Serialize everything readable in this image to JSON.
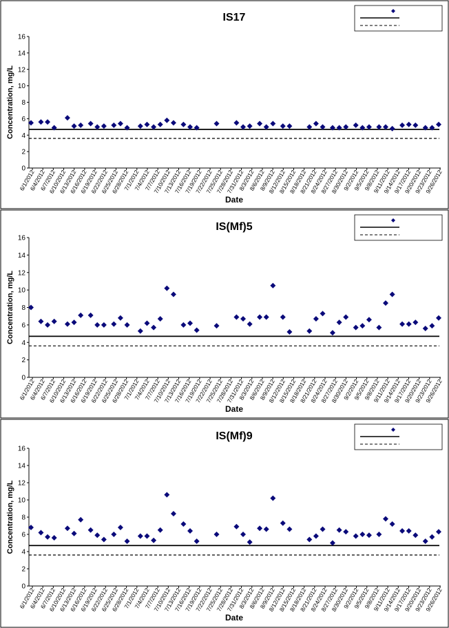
{
  "colors": {
    "marker": "#0a0a7a",
    "line": "#000000",
    "frame": "#000000"
  },
  "chart_data": [
    {
      "type": "scatter",
      "title": "IS17",
      "xlabel": "Date",
      "ylabel": "Concentration, mg/L",
      "ylim": [
        0,
        16
      ],
      "yticks": [
        0,
        2,
        4,
        6,
        8,
        10,
        12,
        14,
        16
      ],
      "grid": false,
      "legend_position": "top-right",
      "legend_labels": [
        "",
        "",
        ""
      ],
      "reference_lines": [
        {
          "y": 4.7,
          "style": "solid"
        },
        {
          "y": 3.6,
          "style": "dashed"
        }
      ],
      "x_tick_labels": [
        "6/1/2012",
        "6/4/2012",
        "6/7/2012",
        "6/10/2012",
        "6/13/2012",
        "6/16/2012",
        "6/19/2012",
        "6/22/2012",
        "6/25/2012",
        "6/28/2012",
        "7/1/2012",
        "7/4/2012",
        "7/7/2012",
        "7/10/2012",
        "7/13/2012",
        "7/16/2012",
        "7/19/2012",
        "7/22/2012",
        "7/25/2012",
        "7/28/2012",
        "7/31/2012",
        "8/3/2012",
        "8/6/2012",
        "8/9/2012",
        "8/12/2012",
        "8/15/2012",
        "8/18/2012",
        "8/21/2012",
        "8/24/2012",
        "8/27/2012",
        "8/30/2012",
        "9/2/2012",
        "9/5/2012",
        "9/8/2012",
        "9/11/2012",
        "9/14/2012",
        "9/17/2012",
        "9/20/2012",
        "9/23/2012",
        "9/26/2012"
      ],
      "points": [
        {
          "x": "6/1/2012",
          "y": 5.5
        },
        {
          "x": "6/4/2012",
          "y": 5.6
        },
        {
          "x": "6/6/2012",
          "y": 5.6
        },
        {
          "x": "6/8/2012",
          "y": 4.9
        },
        {
          "x": "6/12/2012",
          "y": 6.1
        },
        {
          "x": "6/14/2012",
          "y": 5.1
        },
        {
          "x": "6/16/2012",
          "y": 5.2
        },
        {
          "x": "6/19/2012",
          "y": 5.4
        },
        {
          "x": "6/21/2012",
          "y": 5.0
        },
        {
          "x": "6/23/2012",
          "y": 5.1
        },
        {
          "x": "6/26/2012",
          "y": 5.2
        },
        {
          "x": "6/28/2012",
          "y": 5.4
        },
        {
          "x": "6/30/2012",
          "y": 4.9
        },
        {
          "x": "7/4/2012",
          "y": 5.1
        },
        {
          "x": "7/6/2012",
          "y": 5.3
        },
        {
          "x": "7/8/2012",
          "y": 5.0
        },
        {
          "x": "7/10/2012",
          "y": 5.3
        },
        {
          "x": "7/12/2012",
          "y": 5.8
        },
        {
          "x": "7/14/2012",
          "y": 5.5
        },
        {
          "x": "7/17/2012",
          "y": 5.3
        },
        {
          "x": "7/19/2012",
          "y": 5.0
        },
        {
          "x": "7/21/2012",
          "y": 4.9
        },
        {
          "x": "7/27/2012",
          "y": 5.4
        },
        {
          "x": "8/2/2012",
          "y": 5.5
        },
        {
          "x": "8/4/2012",
          "y": 5.0
        },
        {
          "x": "8/6/2012",
          "y": 5.1
        },
        {
          "x": "8/9/2012",
          "y": 5.4
        },
        {
          "x": "8/11/2012",
          "y": 5.0
        },
        {
          "x": "8/13/2012",
          "y": 5.4
        },
        {
          "x": "8/16/2012",
          "y": 5.1
        },
        {
          "x": "8/18/2012",
          "y": 5.1
        },
        {
          "x": "8/24/2012",
          "y": 5.0
        },
        {
          "x": "8/26/2012",
          "y": 5.4
        },
        {
          "x": "8/28/2012",
          "y": 5.0
        },
        {
          "x": "8/31/2012",
          "y": 4.9
        },
        {
          "x": "9/2/2012",
          "y": 4.9
        },
        {
          "x": "9/4/2012",
          "y": 5.0
        },
        {
          "x": "9/7/2012",
          "y": 5.2
        },
        {
          "x": "9/9/2012",
          "y": 4.9
        },
        {
          "x": "9/11/2012",
          "y": 5.0
        },
        {
          "x": "9/14/2012",
          "y": 5.0
        },
        {
          "x": "9/16/2012",
          "y": 5.0
        },
        {
          "x": "9/18/2012",
          "y": 4.8
        },
        {
          "x": "9/21/2012",
          "y": 5.2
        },
        {
          "x": "9/23/2012",
          "y": 5.3
        },
        {
          "x": "9/25/2012",
          "y": 5.2
        },
        {
          "x": "9/28/2012",
          "y": 4.9
        },
        {
          "x": "9/30/2012",
          "y": 4.9
        },
        {
          "x": "10/2/2012",
          "y": 5.3
        }
      ]
    },
    {
      "type": "scatter",
      "title": "IS(Mf)5",
      "xlabel": "Date",
      "ylabel": "Concentration, mg/L",
      "ylim": [
        0,
        16
      ],
      "yticks": [
        0,
        2,
        4,
        6,
        8,
        10,
        12,
        14,
        16
      ],
      "grid": false,
      "legend_position": "top-right",
      "legend_labels": [
        "",
        "",
        ""
      ],
      "reference_lines": [
        {
          "y": 4.7,
          "style": "solid"
        },
        {
          "y": 3.6,
          "style": "dashed"
        }
      ],
      "x_tick_labels": [
        "6/1/2012",
        "6/4/2012",
        "6/7/2012",
        "6/10/2012",
        "6/13/2012",
        "6/16/2012",
        "6/19/2012",
        "6/22/2012",
        "6/25/2012",
        "6/28/2012",
        "7/1/2012",
        "7/4/2012",
        "7/7/2012",
        "7/10/2012",
        "7/13/2012",
        "7/16/2012",
        "7/19/2012",
        "7/22/2012",
        "7/25/2012",
        "7/28/2012",
        "7/31/2012",
        "8/3/2012",
        "8/6/2012",
        "8/9/2012",
        "8/12/2012",
        "8/15/2012",
        "8/18/2012",
        "8/21/2012",
        "8/24/2012",
        "8/27/2012",
        "8/30/2012",
        "9/2/2012",
        "9/5/2012",
        "9/8/2012",
        "9/11/2012",
        "9/14/2012",
        "9/17/2012",
        "9/20/2012",
        "9/23/2012",
        "9/26/2012"
      ],
      "points": [
        {
          "x": "6/1/2012",
          "y": 8.0
        },
        {
          "x": "6/4/2012",
          "y": 6.4
        },
        {
          "x": "6/6/2012",
          "y": 6.0
        },
        {
          "x": "6/8/2012",
          "y": 6.4
        },
        {
          "x": "6/12/2012",
          "y": 6.1
        },
        {
          "x": "6/14/2012",
          "y": 6.3
        },
        {
          "x": "6/16/2012",
          "y": 7.1
        },
        {
          "x": "6/19/2012",
          "y": 7.1
        },
        {
          "x": "6/21/2012",
          "y": 6.0
        },
        {
          "x": "6/23/2012",
          "y": 6.0
        },
        {
          "x": "6/26/2012",
          "y": 6.1
        },
        {
          "x": "6/28/2012",
          "y": 6.8
        },
        {
          "x": "6/30/2012",
          "y": 6.0
        },
        {
          "x": "7/4/2012",
          "y": 5.3
        },
        {
          "x": "7/6/2012",
          "y": 6.2
        },
        {
          "x": "7/8/2012",
          "y": 5.7
        },
        {
          "x": "7/10/2012",
          "y": 6.7
        },
        {
          "x": "7/12/2012",
          "y": 10.2
        },
        {
          "x": "7/14/2012",
          "y": 9.5
        },
        {
          "x": "7/17/2012",
          "y": 6.0
        },
        {
          "x": "7/19/2012",
          "y": 6.2
        },
        {
          "x": "7/21/2012",
          "y": 5.4
        },
        {
          "x": "7/27/2012",
          "y": 5.9
        },
        {
          "x": "8/2/2012",
          "y": 6.9
        },
        {
          "x": "8/4/2012",
          "y": 6.7
        },
        {
          "x": "8/6/2012",
          "y": 6.1
        },
        {
          "x": "8/9/2012",
          "y": 6.9
        },
        {
          "x": "8/11/2012",
          "y": 6.9
        },
        {
          "x": "8/13/2012",
          "y": 10.5
        },
        {
          "x": "8/16/2012",
          "y": 6.9
        },
        {
          "x": "8/18/2012",
          "y": 5.2
        },
        {
          "x": "8/24/2012",
          "y": 5.3
        },
        {
          "x": "8/26/2012",
          "y": 6.7
        },
        {
          "x": "8/28/2012",
          "y": 7.3
        },
        {
          "x": "8/31/2012",
          "y": 5.1
        },
        {
          "x": "9/2/2012",
          "y": 6.3
        },
        {
          "x": "9/4/2012",
          "y": 6.9
        },
        {
          "x": "9/7/2012",
          "y": 5.7
        },
        {
          "x": "9/9/2012",
          "y": 5.9
        },
        {
          "x": "9/11/2012",
          "y": 6.6
        },
        {
          "x": "9/14/2012",
          "y": 5.7
        },
        {
          "x": "9/16/2012",
          "y": 8.5
        },
        {
          "x": "9/18/2012",
          "y": 9.5
        },
        {
          "x": "9/21/2012",
          "y": 6.1
        },
        {
          "x": "9/23/2012",
          "y": 6.1
        },
        {
          "x": "9/25/2012",
          "y": 6.3
        },
        {
          "x": "9/28/2012",
          "y": 5.6
        },
        {
          "x": "9/30/2012",
          "y": 5.9
        },
        {
          "x": "10/2/2012",
          "y": 6.8
        }
      ]
    },
    {
      "type": "scatter",
      "title": "IS(Mf)9",
      "xlabel": "Date",
      "ylabel": "Concentration, mg/L",
      "ylim": [
        0,
        16
      ],
      "yticks": [
        0,
        2,
        4,
        6,
        8,
        10,
        12,
        14,
        16
      ],
      "grid": false,
      "legend_position": "top-right",
      "legend_labels": [
        "",
        "",
        ""
      ],
      "reference_lines": [
        {
          "y": 4.7,
          "style": "solid"
        },
        {
          "y": 3.6,
          "style": "dashed"
        }
      ],
      "x_tick_labels": [
        "6/1/2012",
        "6/4/2012",
        "6/7/2012",
        "6/10/2012",
        "6/13/2012",
        "6/16/2012",
        "6/19/2012",
        "6/22/2012",
        "6/25/2012",
        "6/28/2012",
        "7/1/2012",
        "7/4/2012",
        "7/7/2012",
        "7/10/2012",
        "7/13/2012",
        "7/16/2012",
        "7/19/2012",
        "7/22/2012",
        "7/25/2012",
        "7/28/2012",
        "7/31/2012",
        "8/3/2012",
        "8/6/2012",
        "8/9/2012",
        "8/12/2012",
        "8/15/2012",
        "8/18/2012",
        "8/21/2012",
        "8/24/2012",
        "8/27/2012",
        "8/30/2012",
        "9/2/2012",
        "9/5/2012",
        "9/8/2012",
        "9/11/2012",
        "9/14/2012",
        "9/17/2012",
        "9/20/2012",
        "9/23/2012",
        "9/26/2012"
      ],
      "points": [
        {
          "x": "6/1/2012",
          "y": 6.8
        },
        {
          "x": "6/4/2012",
          "y": 6.2
        },
        {
          "x": "6/6/2012",
          "y": 5.7
        },
        {
          "x": "6/8/2012",
          "y": 5.6
        },
        {
          "x": "6/12/2012",
          "y": 6.7
        },
        {
          "x": "6/14/2012",
          "y": 6.1
        },
        {
          "x": "6/16/2012",
          "y": 7.7
        },
        {
          "x": "6/19/2012",
          "y": 6.5
        },
        {
          "x": "6/21/2012",
          "y": 5.9
        },
        {
          "x": "6/23/2012",
          "y": 5.4
        },
        {
          "x": "6/26/2012",
          "y": 6.0
        },
        {
          "x": "6/28/2012",
          "y": 6.8
        },
        {
          "x": "6/30/2012",
          "y": 5.2
        },
        {
          "x": "7/4/2012",
          "y": 5.8
        },
        {
          "x": "7/6/2012",
          "y": 5.8
        },
        {
          "x": "7/8/2012",
          "y": 5.3
        },
        {
          "x": "7/10/2012",
          "y": 6.5
        },
        {
          "x": "7/12/2012",
          "y": 10.6
        },
        {
          "x": "7/14/2012",
          "y": 8.4
        },
        {
          "x": "7/17/2012",
          "y": 7.2
        },
        {
          "x": "7/19/2012",
          "y": 6.4
        },
        {
          "x": "7/21/2012",
          "y": 5.2
        },
        {
          "x": "7/27/2012",
          "y": 6.0
        },
        {
          "x": "8/2/2012",
          "y": 6.9
        },
        {
          "x": "8/4/2012",
          "y": 6.0
        },
        {
          "x": "8/6/2012",
          "y": 5.1
        },
        {
          "x": "8/9/2012",
          "y": 6.7
        },
        {
          "x": "8/11/2012",
          "y": 6.6
        },
        {
          "x": "8/13/2012",
          "y": 10.2
        },
        {
          "x": "8/16/2012",
          "y": 7.3
        },
        {
          "x": "8/18/2012",
          "y": 6.6
        },
        {
          "x": "8/24/2012",
          "y": 5.4
        },
        {
          "x": "8/26/2012",
          "y": 5.8
        },
        {
          "x": "8/28/2012",
          "y": 6.6
        },
        {
          "x": "8/31/2012",
          "y": 5.0
        },
        {
          "x": "9/2/2012",
          "y": 6.5
        },
        {
          "x": "9/4/2012",
          "y": 6.3
        },
        {
          "x": "9/7/2012",
          "y": 5.8
        },
        {
          "x": "9/9/2012",
          "y": 6.0
        },
        {
          "x": "9/11/2012",
          "y": 5.9
        },
        {
          "x": "9/14/2012",
          "y": 6.0
        },
        {
          "x": "9/16/2012",
          "y": 7.8
        },
        {
          "x": "9/18/2012",
          "y": 7.2
        },
        {
          "x": "9/21/2012",
          "y": 6.4
        },
        {
          "x": "9/23/2012",
          "y": 6.4
        },
        {
          "x": "9/25/2012",
          "y": 5.9
        },
        {
          "x": "9/28/2012",
          "y": 5.2
        },
        {
          "x": "9/30/2012",
          "y": 5.7
        },
        {
          "x": "10/2/2012",
          "y": 6.3
        }
      ]
    }
  ]
}
